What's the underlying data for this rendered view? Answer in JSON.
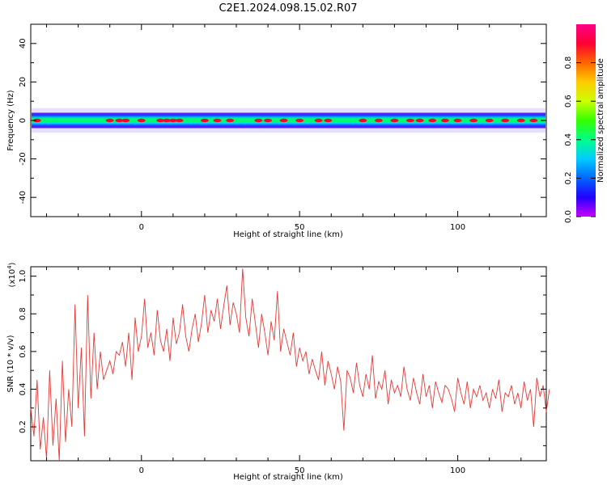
{
  "title": "C2E1.2024.098.15.02.R07",
  "colors": {
    "snr_line": "#e53935",
    "spectrum_band": [
      "#3300ff",
      "#0066ff",
      "#00ccff",
      "#00ff66",
      "#ff0033"
    ],
    "colorbar": [
      "#cc00ff",
      "#2200ff",
      "#0066ff",
      "#00ccff",
      "#00ff88",
      "#33ff00",
      "#ccff00",
      "#ffcc00",
      "#ff6600",
      "#ff0033",
      "#ff0088"
    ]
  },
  "chart_data": [
    {
      "type": "heatmap",
      "xlabel": "Height of straight line (km)",
      "ylabel": "Frequency (Hz)",
      "xlim": [
        -35,
        128
      ],
      "ylim": [
        -50,
        50
      ],
      "xticks": [
        0,
        50,
        100
      ],
      "yticks": [
        -40,
        -20,
        0,
        20,
        40
      ],
      "band_center_hz": 0,
      "band_halfwidth_hz": 4,
      "colorbar": {
        "label": "Normalized spectral amplitude",
        "range": [
          0,
          1
        ],
        "ticks": [
          "0.0",
          "0.2",
          "0.4",
          "0.6",
          "0.8"
        ]
      },
      "peak_positions_km": [
        -33,
        -10,
        -7,
        -5,
        0,
        6,
        8,
        10,
        12,
        20,
        24,
        28,
        37,
        40,
        45,
        50,
        56,
        59,
        70,
        75,
        80,
        85,
        88,
        92,
        96,
        100,
        105,
        110,
        115,
        120,
        124
      ]
    },
    {
      "type": "line",
      "xlabel": "Height of straight line (km)",
      "ylabel": "SNR (10 * v/v)",
      "yscale_label": "(x10",
      "yscale_exp": "4",
      "xlim": [
        -35,
        128
      ],
      "ylim": [
        0.02,
        1.05
      ],
      "xticks": [
        0,
        50,
        100
      ],
      "yticks": [
        "0.2",
        "0.4",
        "0.6",
        "0.8",
        "1.0"
      ],
      "series": [
        {
          "x_start": -35,
          "x_step": 1,
          "values": [
            0.3,
            0.15,
            0.45,
            0.08,
            0.25,
            0.03,
            0.5,
            0.1,
            0.35,
            0.02,
            0.55,
            0.12,
            0.4,
            0.2,
            0.85,
            0.3,
            0.62,
            0.15,
            0.9,
            0.35,
            0.7,
            0.4,
            0.6,
            0.45,
            0.5,
            0.55,
            0.48,
            0.6,
            0.58,
            0.65,
            0.52,
            0.7,
            0.45,
            0.78,
            0.6,
            0.68,
            0.88,
            0.62,
            0.7,
            0.58,
            0.82,
            0.66,
            0.6,
            0.72,
            0.55,
            0.78,
            0.64,
            0.7,
            0.85,
            0.68,
            0.6,
            0.72,
            0.8,
            0.65,
            0.75,
            0.9,
            0.7,
            0.82,
            0.76,
            0.88,
            0.72,
            0.84,
            0.95,
            0.74,
            0.86,
            0.8,
            0.7,
            1.04,
            0.78,
            0.68,
            0.88,
            0.75,
            0.62,
            0.8,
            0.7,
            0.58,
            0.76,
            0.66,
            0.92,
            0.6,
            0.72,
            0.65,
            0.58,
            0.7,
            0.52,
            0.62,
            0.55,
            0.6,
            0.48,
            0.56,
            0.5,
            0.45,
            0.6,
            0.42,
            0.55,
            0.48,
            0.4,
            0.52,
            0.44,
            0.18,
            0.5,
            0.46,
            0.38,
            0.54,
            0.42,
            0.36,
            0.48,
            0.4,
            0.58,
            0.35,
            0.44,
            0.4,
            0.5,
            0.32,
            0.45,
            0.38,
            0.42,
            0.36,
            0.52,
            0.4,
            0.34,
            0.46,
            0.38,
            0.32,
            0.48,
            0.36,
            0.42,
            0.3,
            0.44,
            0.38,
            0.33,
            0.42,
            0.4,
            0.35,
            0.28,
            0.46,
            0.38,
            0.32,
            0.44,
            0.3,
            0.4,
            0.36,
            0.42,
            0.34,
            0.38,
            0.3,
            0.4,
            0.35,
            0.45,
            0.28,
            0.38,
            0.36,
            0.42,
            0.32,
            0.38,
            0.3,
            0.44,
            0.34,
            0.4,
            0.2,
            0.46,
            0.36,
            0.42,
            0.28,
            0.4
          ]
        }
      ]
    }
  ]
}
